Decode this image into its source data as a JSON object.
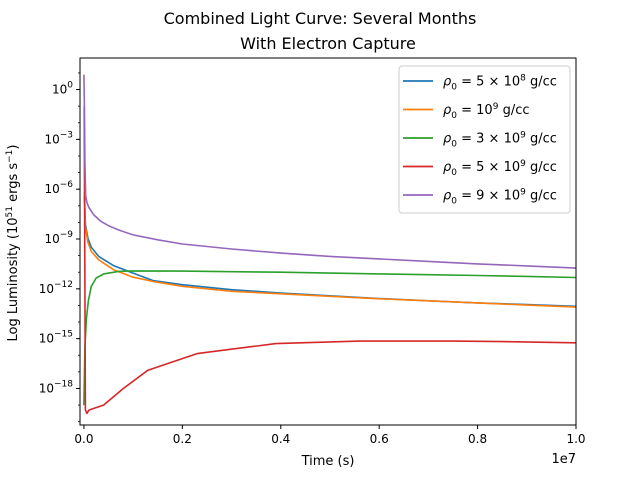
{
  "chart_data": {
    "type": "line",
    "title": "Combined Light Curve: Several Months",
    "subtitle": "With Electron Capture",
    "xlabel": "Time (s)",
    "ylabel": "Log Luminosity (10^51 ergs s^-1)",
    "x_offset_label": "1e7",
    "xscale": "linear",
    "yscale": "log",
    "xlim": [
      -80000,
      10000000
    ],
    "ylim_log10": [
      -20.2,
      1.9
    ],
    "x_ticks": [
      0,
      2000000,
      4000000,
      6000000,
      8000000,
      10000000
    ],
    "x_tick_labels": [
      "0.0",
      "0.2",
      "0.4",
      "0.6",
      "0.8",
      "1.0"
    ],
    "y_ticks_log10": [
      0,
      -3,
      -6,
      -9,
      -12,
      -15,
      -18
    ],
    "legend_position": "upper right",
    "grid": false,
    "series": [
      {
        "name": "ρ0 = 5×10^8 g/cc",
        "color": "#1f77b4",
        "x": [
          10000,
          30000,
          80000,
          150000,
          300000,
          600000,
          1000000,
          1400000,
          2000000,
          3000000,
          4000000,
          5000000,
          6000000,
          7000000,
          8000000,
          9000000,
          10000000
        ],
        "log10_y": [
          -6.4,
          -8.1,
          -8.95,
          -9.5,
          -10.05,
          -10.6,
          -11.05,
          -11.5,
          -11.75,
          -12.05,
          -12.25,
          -12.42,
          -12.58,
          -12.72,
          -12.85,
          -12.95,
          -13.05
        ]
      },
      {
        "name": "ρ0 = 10^9 g/cc",
        "color": "#ff7f0e",
        "x": [
          10000,
          30000,
          80000,
          150000,
          300000,
          600000,
          1000000,
          1400000,
          2000000,
          3000000,
          4000000,
          5000000,
          6000000,
          7000000,
          8000000,
          9000000,
          10000000
        ],
        "log10_y": [
          -6.2,
          -8.3,
          -9.2,
          -9.75,
          -10.25,
          -10.85,
          -11.3,
          -11.55,
          -11.85,
          -12.15,
          -12.3,
          -12.45,
          -12.6,
          -12.72,
          -12.85,
          -12.98,
          -13.1
        ]
      },
      {
        "name": "ρ0 = 3×10^9 g/cc",
        "color": "#2ca02c",
        "x": [
          0,
          20000,
          50000,
          90000,
          150000,
          250000,
          400000,
          700000,
          1000000,
          2000000,
          3000000,
          4000000,
          5000000,
          6000000,
          7000000,
          8000000,
          9000000,
          10000000
        ],
        "log10_y": [
          -19,
          -15.5,
          -13.8,
          -12.7,
          -11.85,
          -11.35,
          -11.1,
          -10.95,
          -10.92,
          -10.93,
          -10.97,
          -11.0,
          -11.05,
          -11.1,
          -11.15,
          -11.2,
          -11.25,
          -11.32
        ]
      },
      {
        "name": "ρ0 = 5×10^9 g/cc",
        "color": "#d62728",
        "x": [
          5000,
          30000,
          60000,
          100000,
          200000,
          400000,
          800000,
          1300000,
          2300000,
          3900000,
          5600000,
          7500000,
          8500000,
          10000000
        ],
        "log10_y": [
          -1.0,
          -19.3,
          -19.5,
          -19.3,
          -19.2,
          -19.0,
          -18.0,
          -16.9,
          -15.9,
          -15.3,
          -15.15,
          -15.15,
          -15.18,
          -15.25
        ]
      },
      {
        "name": "ρ0 = 9×10^9 g/cc",
        "color": "#9467bd",
        "x": [
          0,
          10000,
          20000,
          35000,
          60000,
          100000,
          200000,
          350000,
          500000,
          700000,
          1000000,
          1500000,
          2000000,
          3000000,
          4000000,
          5000000,
          6000000,
          7000000,
          8000000,
          9000000,
          10000000
        ],
        "log10_y": [
          0.9,
          -1.0,
          -4.3,
          -6.4,
          -6.8,
          -7.1,
          -7.55,
          -7.95,
          -8.2,
          -8.45,
          -8.75,
          -9.05,
          -9.3,
          -9.6,
          -9.85,
          -10.05,
          -10.2,
          -10.35,
          -10.5,
          -10.62,
          -10.75
        ]
      }
    ]
  }
}
